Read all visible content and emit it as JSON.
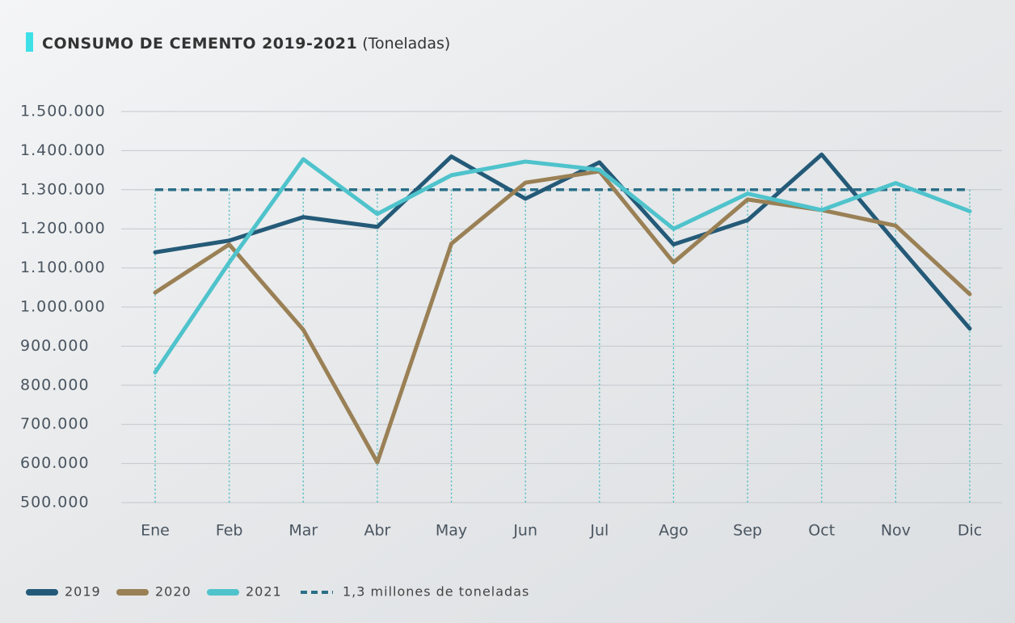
{
  "chart_data": {
    "type": "line",
    "title": "CONSUMO DE CEMENTO 2019-2021",
    "subtitle": "(Toneladas)",
    "categories": [
      "Ene",
      "Feb",
      "Mar",
      "Abr",
      "May",
      "Jun",
      "Jul",
      "Ago",
      "Sep",
      "Oct",
      "Nov",
      "Dic"
    ],
    "series": [
      {
        "name": "2019",
        "color": "#245a78",
        "values": [
          1140000,
          1170000,
          1230000,
          1205000,
          1385000,
          1277000,
          1370000,
          1160000,
          1222000,
          1390000,
          1165000,
          945000
        ]
      },
      {
        "name": "2020",
        "color": "#9a8055",
        "values": [
          1037000,
          1160000,
          942000,
          603000,
          1162000,
          1318000,
          1347000,
          1114000,
          1275000,
          1248000,
          1208000,
          1033000
        ]
      },
      {
        "name": "2021",
        "color": "#4fc3cc",
        "values": [
          833000,
          1114000,
          1378000,
          1238000,
          1337000,
          1372000,
          1351000,
          1200000,
          1290000,
          1248000,
          1317000,
          1245000
        ]
      }
    ],
    "reference": {
      "name": "1,3 millones de toneladas",
      "value": 1300000,
      "color": "#2a6f88"
    },
    "ylim": [
      500000,
      1500000
    ],
    "yticks": [
      {
        "value": 500000,
        "label": "500.000"
      },
      {
        "value": 600000,
        "label": "600.000"
      },
      {
        "value": 700000,
        "label": "700.000"
      },
      {
        "value": 800000,
        "label": "800.000"
      },
      {
        "value": 900000,
        "label": "900.000"
      },
      {
        "value": 1000000,
        "label": "1.000.000"
      },
      {
        "value": 1100000,
        "label": "1.100.000"
      },
      {
        "value": 1200000,
        "label": "1.200.000"
      },
      {
        "value": 1300000,
        "label": "1.300.000"
      },
      {
        "value": 1400000,
        "label": "1.400.000"
      },
      {
        "value": 1500000,
        "label": "1.500.000"
      }
    ],
    "grid": true
  }
}
